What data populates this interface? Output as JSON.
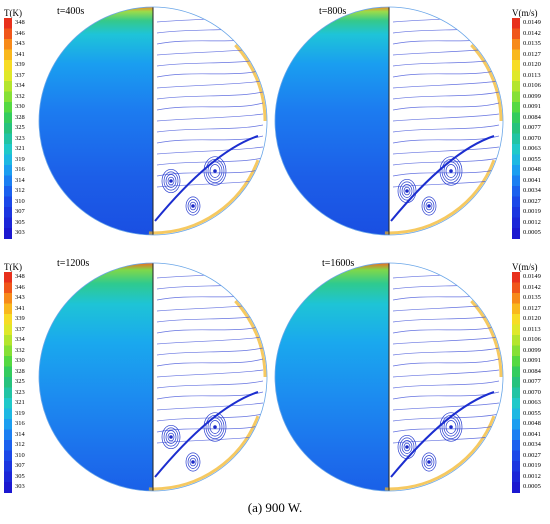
{
  "panels": [
    {
      "time": "t=400s"
    },
    {
      "time": "t=800s"
    },
    {
      "time": "t=1200s"
    },
    {
      "time": "t=1600s"
    }
  ],
  "temperature_scale": {
    "title": "T(K)",
    "ticks": [
      "348",
      "346",
      "343",
      "341",
      "339",
      "337",
      "334",
      "332",
      "330",
      "328",
      "325",
      "323",
      "321",
      "319",
      "316",
      "314",
      "312",
      "310",
      "307",
      "305",
      "303"
    ]
  },
  "velocity_scale": {
    "title": "V(m/s)",
    "ticks": [
      "0.0149",
      "0.0142",
      "0.0135",
      "0.0127",
      "0.0120",
      "0.0113",
      "0.0106",
      "0.0099",
      "0.0091",
      "0.0084",
      "0.0077",
      "0.0070",
      "0.0063",
      "0.0055",
      "0.0048",
      "0.0041",
      "0.0034",
      "0.0027",
      "0.0019",
      "0.0012",
      "0.0005"
    ]
  },
  "caption": "(a) 900 W.",
  "colors": {
    "scale": [
      "#e8301c",
      "#f0561a",
      "#f78a1a",
      "#f9b81e",
      "#f7dc26",
      "#dfe82a",
      "#b4e52e",
      "#86e036",
      "#55d942",
      "#34cc5e",
      "#27c27d",
      "#22c4a4",
      "#20c9c9",
      "#1eb8e2",
      "#1c9ef0",
      "#1c7ff2",
      "#1c61ee",
      "#1c48e8",
      "#1c36e0",
      "#1c26d8",
      "#1c18d0"
    ]
  }
}
